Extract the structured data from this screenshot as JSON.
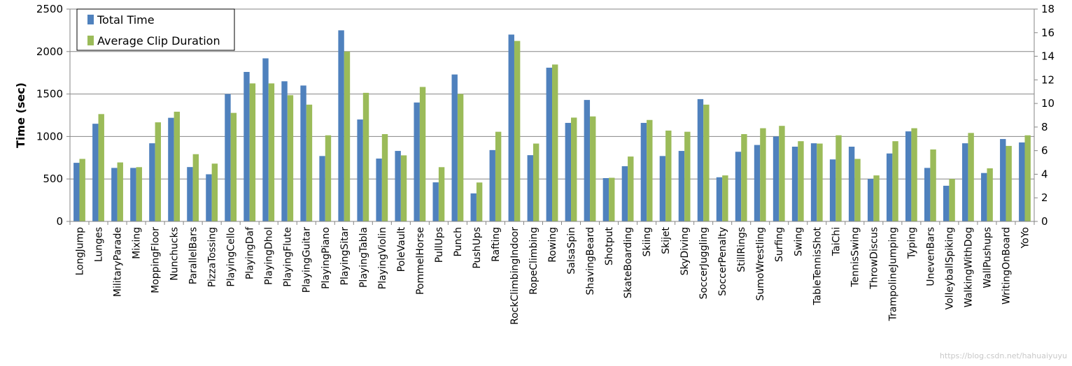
{
  "chart_data": {
    "type": "bar",
    "ylabel": "Time (sec)",
    "y2label": "",
    "ylim": [
      0,
      2500
    ],
    "y2lim": [
      0,
      18
    ],
    "yticks": [
      0,
      500,
      1000,
      1500,
      2000,
      2500
    ],
    "y2ticks": [
      0,
      2,
      4,
      6,
      8,
      10,
      12,
      14,
      16,
      18
    ],
    "grid": true,
    "legend_position": "top-left",
    "categories": [
      "LongJump",
      "Lunges",
      "MilitaryParade",
      "Mixing",
      "MoppingFloor",
      "Nunchucks",
      "ParallelBars",
      "PizzaTossing",
      "PlayingCello",
      "PlayingDaf",
      "PlayingDhol",
      "PlayingFlute",
      "PlayingGuitar",
      "PlayingPiano",
      "PlayingSitar",
      "PlayingTabla",
      "PlayingViolin",
      "PoleVault",
      "PommelHorse",
      "PullUps",
      "Punch",
      "PushUps",
      "Rafting",
      "RockClimbingIndoor",
      "RopeClimbing",
      "Rowing",
      "SalsaSpin",
      "ShavingBeard",
      "Shotput",
      "SkateBoarding",
      "Skiing",
      "Skijet",
      "SkyDiving",
      "SoccerJuggling",
      "SoccerPenalty",
      "StillRings",
      "SumoWrestling",
      "Surfing",
      "Swing",
      "TableTennisShot",
      "TaiChi",
      "TennisSwing",
      "ThrowDiscus",
      "TrampolineJumping",
      "Typing",
      "UnevenBars",
      "VolleyballSpiking",
      "WalkingWithDog",
      "WallPushups",
      "WritingOnBoard",
      "YoYo"
    ],
    "series": [
      {
        "name": "Total Time",
        "color": "#4f81bd",
        "axis": "left",
        "values": [
          690,
          1150,
          630,
          630,
          920,
          1220,
          640,
          555,
          1500,
          1760,
          1920,
          1650,
          1600,
          770,
          2250,
          1200,
          740,
          830,
          1400,
          460,
          1730,
          330,
          840,
          2200,
          780,
          1810,
          1160,
          1430,
          510,
          650,
          1160,
          770,
          830,
          1440,
          520,
          820,
          900,
          1000,
          880,
          920,
          730,
          880,
          500,
          800,
          1060,
          630,
          420,
          920,
          570,
          970,
          930
        ]
      },
      {
        "name": "Average Clip Duration",
        "color": "#9bbb59",
        "axis": "right",
        "values": [
          5.3,
          9.1,
          5.0,
          4.6,
          8.4,
          9.3,
          5.7,
          4.9,
          9.2,
          11.7,
          11.7,
          10.7,
          9.9,
          7.3,
          14.4,
          10.9,
          7.4,
          5.6,
          11.4,
          4.6,
          10.8,
          3.3,
          7.6,
          15.3,
          6.6,
          13.3,
          8.8,
          8.9,
          3.7,
          5.5,
          8.6,
          7.7,
          7.6,
          9.9,
          3.9,
          7.4,
          7.9,
          8.1,
          6.8,
          6.6,
          7.3,
          5.3,
          3.9,
          6.8,
          7.9,
          6.1,
          3.6,
          7.5,
          4.5,
          6.4,
          7.3
        ]
      }
    ]
  },
  "watermark": "https://blog.csdn.net/hahuaiyuyu",
  "legend_box_color": "#000000",
  "grid_color": "#868686"
}
